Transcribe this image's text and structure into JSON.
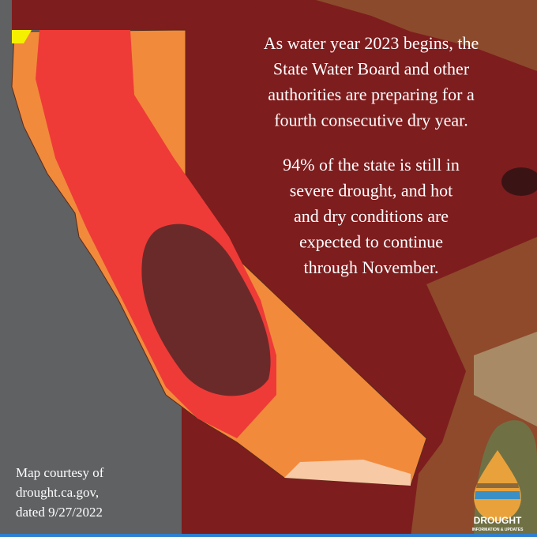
{
  "message": {
    "paragraphs": [
      {
        "lines": [
          "As water year 2023 begins, the",
          "State Water Board and other",
          "authorities are preparing for a",
          "fourth consecutive dry year."
        ]
      },
      {
        "lines": [
          "94% of the state is still in",
          "severe drought, and hot",
          "and dry conditions are",
          "expected to continue",
          "through November."
        ]
      }
    ]
  },
  "credit": {
    "lines": [
      "Map courtesy of",
      "drought.ca.gov,",
      "dated 9/27/2022"
    ]
  },
  "logo": {
    "title": "DROUGHT",
    "subtitle": "INFORMATION & UPDATES"
  }
}
